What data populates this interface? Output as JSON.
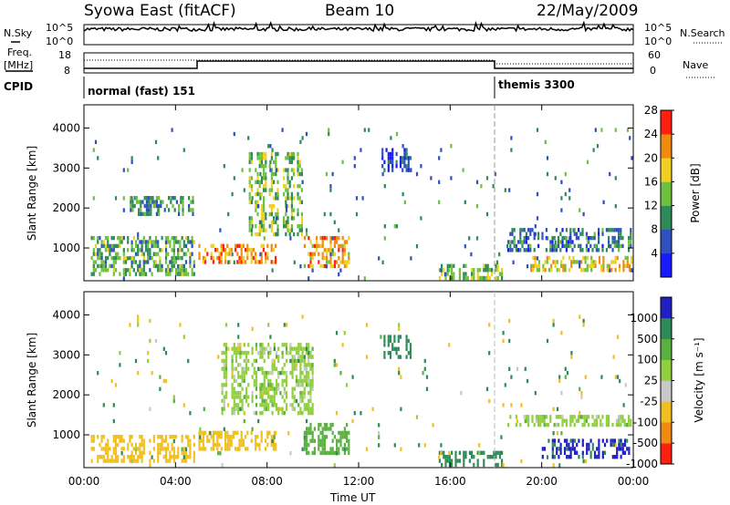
{
  "header": {
    "station": "Syowa East (fitACF)",
    "beam": "Beam 10",
    "date": "22/May/2009"
  },
  "top_panels": {
    "nsky_label": "N.Sky",
    "nsky_ticks": [
      "10^5",
      "10^0"
    ],
    "nsearch_label": "N.Search",
    "nsearch_ticks": [
      "10^5",
      "10^0"
    ],
    "freq_label_1": "Freq.",
    "freq_label_2": "[MHz]",
    "freq_ticks": [
      "18",
      "8"
    ],
    "nave_label": "Nave",
    "nave_ticks": [
      "60",
      "0"
    ],
    "cpid_label": "CPID",
    "cpid_segments": [
      {
        "name": "normal (fast) 151",
        "start_hour": 0,
        "end_hour": 18
      },
      {
        "name": "themis 3300",
        "start_hour": 18,
        "end_hour": 24
      }
    ]
  },
  "chart_data": [
    {
      "type": "heatmap",
      "panel": "power",
      "ylabel": "Slant Range [km]",
      "xlabel": "",
      "y_ticks": [
        "1000",
        "2000",
        "3000",
        "4000"
      ],
      "ylim": [
        180,
        4580
      ],
      "x_ticks": [
        "00:00",
        "04:00",
        "08:00",
        "12:00",
        "16:00",
        "20:00",
        "00:00"
      ],
      "xlim_hours": [
        0,
        24
      ],
      "colorbar_label": "Power [dB]",
      "colorbar_ticks": [
        "4",
        "8",
        "12",
        "16",
        "20",
        "24",
        "28"
      ],
      "colorbar_colors": [
        "#1a1aff",
        "#3050c0",
        "#2e8b57",
        "#70c040",
        "#f0d020",
        "#f08a10",
        "#ff2010"
      ],
      "regions": [
        {
          "t0": 5.0,
          "t1": 8.4,
          "r0": 600,
          "r1": 1100,
          "value": 22
        },
        {
          "t0": 7.2,
          "t1": 9.5,
          "r0": 1300,
          "r1": 3400,
          "value": 14
        },
        {
          "t0": 9.6,
          "t1": 11.6,
          "r0": 500,
          "r1": 1300,
          "value": 20
        },
        {
          "t0": 13.0,
          "t1": 14.3,
          "r0": 2900,
          "r1": 3500,
          "value": 6
        },
        {
          "t0": 0.3,
          "t1": 4.8,
          "r0": 350,
          "r1": 1300,
          "value": 12
        },
        {
          "t0": 15.5,
          "t1": 18.3,
          "r0": 250,
          "r1": 600,
          "value": 14
        },
        {
          "t0": 18.5,
          "t1": 23.9,
          "r0": 900,
          "r1": 1500,
          "value": 8
        },
        {
          "t0": 19.5,
          "t1": 23.9,
          "r0": 400,
          "r1": 800,
          "value": 18
        },
        {
          "t0": 2.0,
          "t1": 4.8,
          "r0": 1800,
          "r1": 2300,
          "value": 10
        },
        {
          "t0": 0.3,
          "t1": 23.9,
          "r0": 200,
          "r1": 4000,
          "value": 8
        }
      ]
    },
    {
      "type": "heatmap",
      "panel": "velocity",
      "ylabel": "Slant Range [km]",
      "xlabel": "Time UT",
      "y_ticks": [
        "1000",
        "2000",
        "3000",
        "4000"
      ],
      "ylim": [
        180,
        4580
      ],
      "x_ticks": [
        "00:00",
        "04:00",
        "08:00",
        "12:00",
        "16:00",
        "20:00",
        "00:00"
      ],
      "xlim_hours": [
        0,
        24
      ],
      "colorbar_label": "Velocity [m s⁻¹]",
      "colorbar_ticks": [
        "1000",
        "500",
        "100",
        "25",
        "-25",
        "-100",
        "-500",
        "-1000"
      ],
      "colorbar_colors": [
        "#2020c0",
        "#2e8b57",
        "#5ab040",
        "#90d040",
        "#c8c8c8",
        "#f0c020",
        "#f08a10",
        "#ff2010"
      ],
      "regions": [
        {
          "t0": 5.0,
          "t1": 8.4,
          "r0": 600,
          "r1": 1100,
          "value": -300
        },
        {
          "t0": 6.0,
          "t1": 10.0,
          "r0": 1500,
          "r1": 3300,
          "value": 0
        },
        {
          "t0": 9.6,
          "t1": 11.6,
          "r0": 500,
          "r1": 1300,
          "value": 60
        },
        {
          "t0": 13.0,
          "t1": 14.3,
          "r0": 2900,
          "r1": 3500,
          "value": 300
        },
        {
          "t0": 0.3,
          "t1": 4.8,
          "r0": 350,
          "r1": 1000,
          "value": -200
        },
        {
          "t0": 15.5,
          "t1": 18.3,
          "r0": 250,
          "r1": 600,
          "value": 300
        },
        {
          "t0": 18.5,
          "t1": 23.9,
          "r0": 1200,
          "r1": 1500,
          "value": 0
        },
        {
          "t0": 20.0,
          "t1": 23.9,
          "r0": 400,
          "r1": 900,
          "value": 700
        },
        {
          "t0": 0.3,
          "t1": 23.9,
          "r0": 200,
          "r1": 4000,
          "value": -50
        }
      ]
    }
  ]
}
